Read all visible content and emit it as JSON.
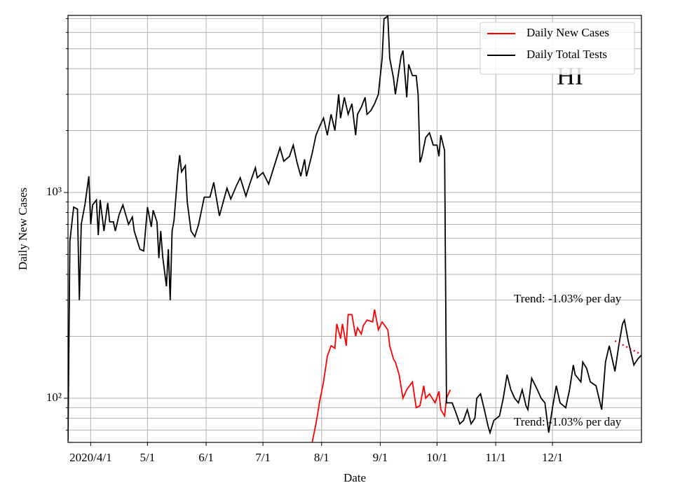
{
  "chart_data": {
    "type": "line",
    "xlabel": "Date",
    "ylabel": "Daily New Cases",
    "log_y": true,
    "grid": true,
    "legend": "upper right",
    "xlim": [
      "2020-03-20",
      "2021-01-17"
    ],
    "xticks": [
      {
        "value": "2020-04-01",
        "label": "2020/4/1"
      },
      {
        "value": "2020-05-01",
        "label": "5/1"
      },
      {
        "value": "2020-06-01",
        "label": "6/1"
      },
      {
        "value": "2020-07-01",
        "label": "7/1"
      },
      {
        "value": "2020-08-01",
        "label": "8/1"
      },
      {
        "value": "2020-09-01",
        "label": "9/1"
      },
      {
        "value": "2020-10-01",
        "label": "10/1"
      },
      {
        "value": "2020-11-01",
        "label": "11/1"
      },
      {
        "value": "2020-12-01",
        "label": "12/1"
      }
    ],
    "ylim": [
      61,
      7260
    ],
    "yticks": [
      {
        "value": 100,
        "label": "10²"
      },
      {
        "value": 1000,
        "label": "10³"
      }
    ],
    "yticks_minor": [
      70,
      80,
      90,
      200,
      300,
      400,
      500,
      600,
      700,
      800,
      900,
      2000,
      3000,
      4000,
      5000,
      6000,
      7000
    ],
    "series": [
      {
        "name": "Daily New Cases",
        "color": "#ff0000",
        "x": [
          "2020-07-27",
          "2020-07-29",
          "2020-07-31",
          "2020-08-02",
          "2020-08-04",
          "2020-08-06",
          "2020-08-08",
          "2020-08-09",
          "2020-08-11",
          "2020-08-12",
          "2020-08-14",
          "2020-08-15",
          "2020-08-17",
          "2020-08-19",
          "2020-08-20",
          "2020-08-22",
          "2020-08-23",
          "2020-08-25",
          "2020-08-28",
          "2020-08-29",
          "2020-08-31",
          "2020-09-02",
          "2020-09-05",
          "2020-09-06",
          "2020-09-08",
          "2020-09-09",
          "2020-09-11",
          "2020-09-13",
          "2020-09-15",
          "2020-09-18",
          "2020-09-20",
          "2020-09-22",
          "2020-09-24",
          "2020-09-25",
          "2020-09-27",
          "2020-09-30",
          "2020-10-02",
          "2020-10-03",
          "2020-10-05",
          "2020-10-06",
          "2020-10-08"
        ],
        "values": [
          61,
          75,
          97,
          120,
          160,
          180,
          175,
          230,
          195,
          230,
          180,
          255,
          255,
          200,
          220,
          205,
          225,
          240,
          235,
          270,
          215,
          235,
          215,
          180,
          155,
          150,
          130,
          100,
          110,
          120,
          90,
          92,
          115,
          100,
          105,
          95,
          108,
          88,
          82,
          100,
          110
        ]
      },
      {
        "name": "Daily Total Tests",
        "color": "#000000",
        "x": [
          "2020-03-20",
          "2020-03-21",
          "2020-03-23",
          "2020-03-25",
          "2020-03-26",
          "2020-03-27",
          "2020-03-29",
          "2020-03-31",
          "2020-04-01",
          "2020-04-02",
          "2020-04-04",
          "2020-04-05",
          "2020-04-06",
          "2020-04-08",
          "2020-04-10",
          "2020-04-11",
          "2020-04-13",
          "2020-04-14",
          "2020-04-16",
          "2020-04-18",
          "2020-04-21",
          "2020-04-23",
          "2020-04-24",
          "2020-04-27",
          "2020-04-29",
          "2020-05-01",
          "2020-05-03",
          "2020-05-04",
          "2020-05-06",
          "2020-05-07",
          "2020-05-08",
          "2020-05-09",
          "2020-05-11",
          "2020-05-12",
          "2020-05-13",
          "2020-05-14",
          "2020-05-15",
          "2020-05-17",
          "2020-05-18",
          "2020-05-19",
          "2020-05-21",
          "2020-05-22",
          "2020-05-24",
          "2020-05-26",
          "2020-05-28",
          "2020-05-31",
          "2020-06-03",
          "2020-06-05",
          "2020-06-08",
          "2020-06-10",
          "2020-06-12",
          "2020-06-14",
          "2020-06-17",
          "2020-06-19",
          "2020-06-22",
          "2020-06-24",
          "2020-06-27",
          "2020-06-28",
          "2020-07-01",
          "2020-07-04",
          "2020-07-07",
          "2020-07-10",
          "2020-07-12",
          "2020-07-15",
          "2020-07-17",
          "2020-07-19",
          "2020-07-21",
          "2020-07-23",
          "2020-07-24",
          "2020-07-27",
          "2020-07-29",
          "2020-07-31",
          "2020-08-02",
          "2020-08-04",
          "2020-08-06",
          "2020-08-08",
          "2020-08-10",
          "2020-08-11",
          "2020-08-13",
          "2020-08-15",
          "2020-08-17",
          "2020-08-19",
          "2020-08-20",
          "2020-08-22",
          "2020-08-24",
          "2020-08-25",
          "2020-08-27",
          "2020-08-29",
          "2020-08-31",
          "2020-09-02",
          "2020-09-03",
          "2020-09-05",
          "2020-09-06",
          "2020-09-08",
          "2020-09-09",
          "2020-09-12",
          "2020-09-13",
          "2020-09-15",
          "2020-09-16",
          "2020-09-18",
          "2020-09-20",
          "2020-09-21",
          "2020-09-22",
          "2020-09-23",
          "2020-09-25",
          "2020-09-27",
          "2020-09-29",
          "2020-10-01",
          "2020-10-02",
          "2020-10-03",
          "2020-10-05",
          "2020-10-06",
          "2020-10-08",
          "2020-10-09",
          "2020-10-11",
          "2020-10-13",
          "2020-10-15",
          "2020-10-17",
          "2020-10-19",
          "2020-10-21",
          "2020-10-22",
          "2020-10-24",
          "2020-10-26",
          "2020-10-28",
          "2020-10-29",
          "2020-10-31",
          "2020-11-03",
          "2020-11-05",
          "2020-11-07",
          "2020-11-09",
          "2020-11-11",
          "2020-11-13",
          "2020-11-15",
          "2020-11-17",
          "2020-11-18",
          "2020-11-20",
          "2020-11-23",
          "2020-11-25",
          "2020-11-27",
          "2020-11-29",
          "2020-12-01",
          "2020-12-03",
          "2020-12-05",
          "2020-12-08",
          "2020-12-10",
          "2020-12-12",
          "2020-12-13",
          "2020-12-16",
          "2020-12-17",
          "2020-12-19",
          "2020-12-21",
          "2020-12-24",
          "2020-12-27",
          "2020-12-29",
          "2020-12-31",
          "2021-01-03",
          "2021-01-05",
          "2021-01-07",
          "2021-01-08",
          "2021-01-10",
          "2021-01-13",
          "2021-01-15",
          "2021-01-17"
        ],
        "values": [
          62,
          580,
          850,
          830,
          300,
          700,
          880,
          1200,
          700,
          870,
          920,
          620,
          920,
          650,
          890,
          720,
          720,
          650,
          780,
          870,
          700,
          760,
          650,
          530,
          520,
          850,
          680,
          820,
          720,
          480,
          650,
          490,
          350,
          530,
          300,
          650,
          730,
          1250,
          1520,
          1260,
          1350,
          900,
          650,
          610,
          700,
          950,
          950,
          1120,
          770,
          900,
          1050,
          930,
          1080,
          1180,
          960,
          1100,
          1320,
          1180,
          1250,
          1100,
          1350,
          1650,
          1420,
          1500,
          1700,
          1400,
          1200,
          1450,
          1200,
          1550,
          1900,
          2100,
          2300,
          1900,
          2400,
          2000,
          3000,
          2300,
          2900,
          2400,
          2700,
          1900,
          2400,
          2600,
          2900,
          2400,
          2500,
          2700,
          3000,
          4500,
          7000,
          7200,
          4500,
          3600,
          3000,
          4600,
          4900,
          2900,
          4200,
          3700,
          3700,
          3000,
          1400,
          1500,
          1850,
          1950,
          1700,
          1700,
          1500,
          1900,
          1600,
          95,
          95,
          95,
          85,
          75,
          78,
          88,
          75,
          80,
          100,
          105,
          88,
          73,
          68,
          78,
          82,
          100,
          130,
          110,
          100,
          95,
          110,
          92,
          88,
          125,
          110,
          100,
          95,
          68,
          90,
          115,
          95,
          90,
          110,
          145,
          130,
          120,
          150,
          140,
          120,
          115,
          88,
          150,
          180,
          135,
          180,
          230,
          240,
          190,
          145,
          155,
          162
        ]
      }
    ],
    "trend": {
      "color": "#cc0000",
      "x": [
        "2021-01-03",
        "2021-01-17"
      ],
      "values": [
        190,
        163
      ]
    },
    "annotations": [
      "Trend: -1.03% per day",
      "Trend: -1.03% per day",
      "HI"
    ]
  }
}
